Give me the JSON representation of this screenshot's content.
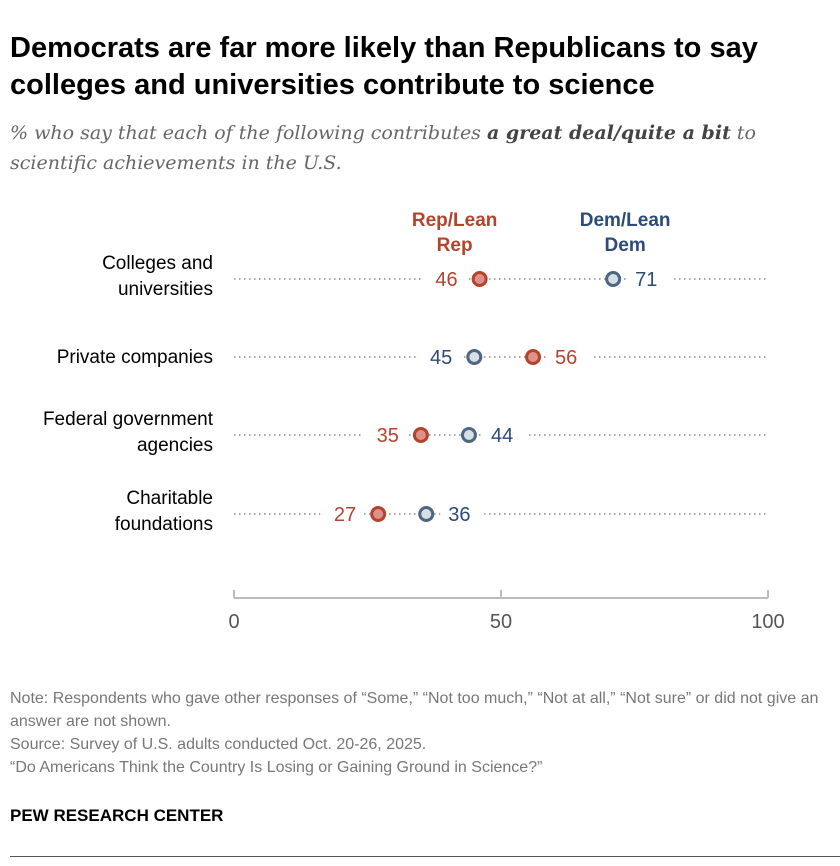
{
  "title": "Democrats are far more likely than Republicans to say colleges and universities contribute to science",
  "subtitle_pre": "% who say that each of the following contributes ",
  "subtitle_bold": "a great deal/quite a bit",
  "subtitle_post": " to scientific achievements in the U.S.",
  "colors": {
    "rep": "#b5432c",
    "rep_fill": "#dc918a",
    "dem": "#2c4a7a",
    "dem_fill": "#d7dfe6",
    "dem_stroke": "#4d6780",
    "axis": "#bbbbbb",
    "dots": "#888888"
  },
  "chart_data": {
    "type": "dot-plot",
    "categories": [
      [
        "Colleges and",
        "universities"
      ],
      [
        "Private companies"
      ],
      [
        "Federal government",
        "agencies"
      ],
      [
        "Charitable",
        "foundations"
      ]
    ],
    "series": [
      {
        "name": "Rep/Lean Rep",
        "values": [
          46,
          56,
          35,
          27
        ]
      },
      {
        "name": "Dem/Lean Dem",
        "values": [
          71,
          45,
          44,
          36
        ]
      }
    ],
    "legend_labels": [
      [
        "Rep/Lean",
        "Rep"
      ],
      [
        "Dem/Lean",
        "Dem"
      ]
    ],
    "xlim": [
      0,
      100
    ],
    "xticks": [
      "0",
      "50",
      "100"
    ],
    "grid": false,
    "legend": "top, above first row"
  },
  "notes": [
    "Note: Respondents who gave other responses of “Some,” “Not too much,” “Not at all,” “Not sure” or did not give an answer are not shown.",
    "Source: Survey of U.S. adults conducted Oct. 20-26, 2025.",
    "“Do Americans Think the Country Is Losing or Gaining Ground in Science?”"
  ],
  "brand": "PEW RESEARCH CENTER"
}
